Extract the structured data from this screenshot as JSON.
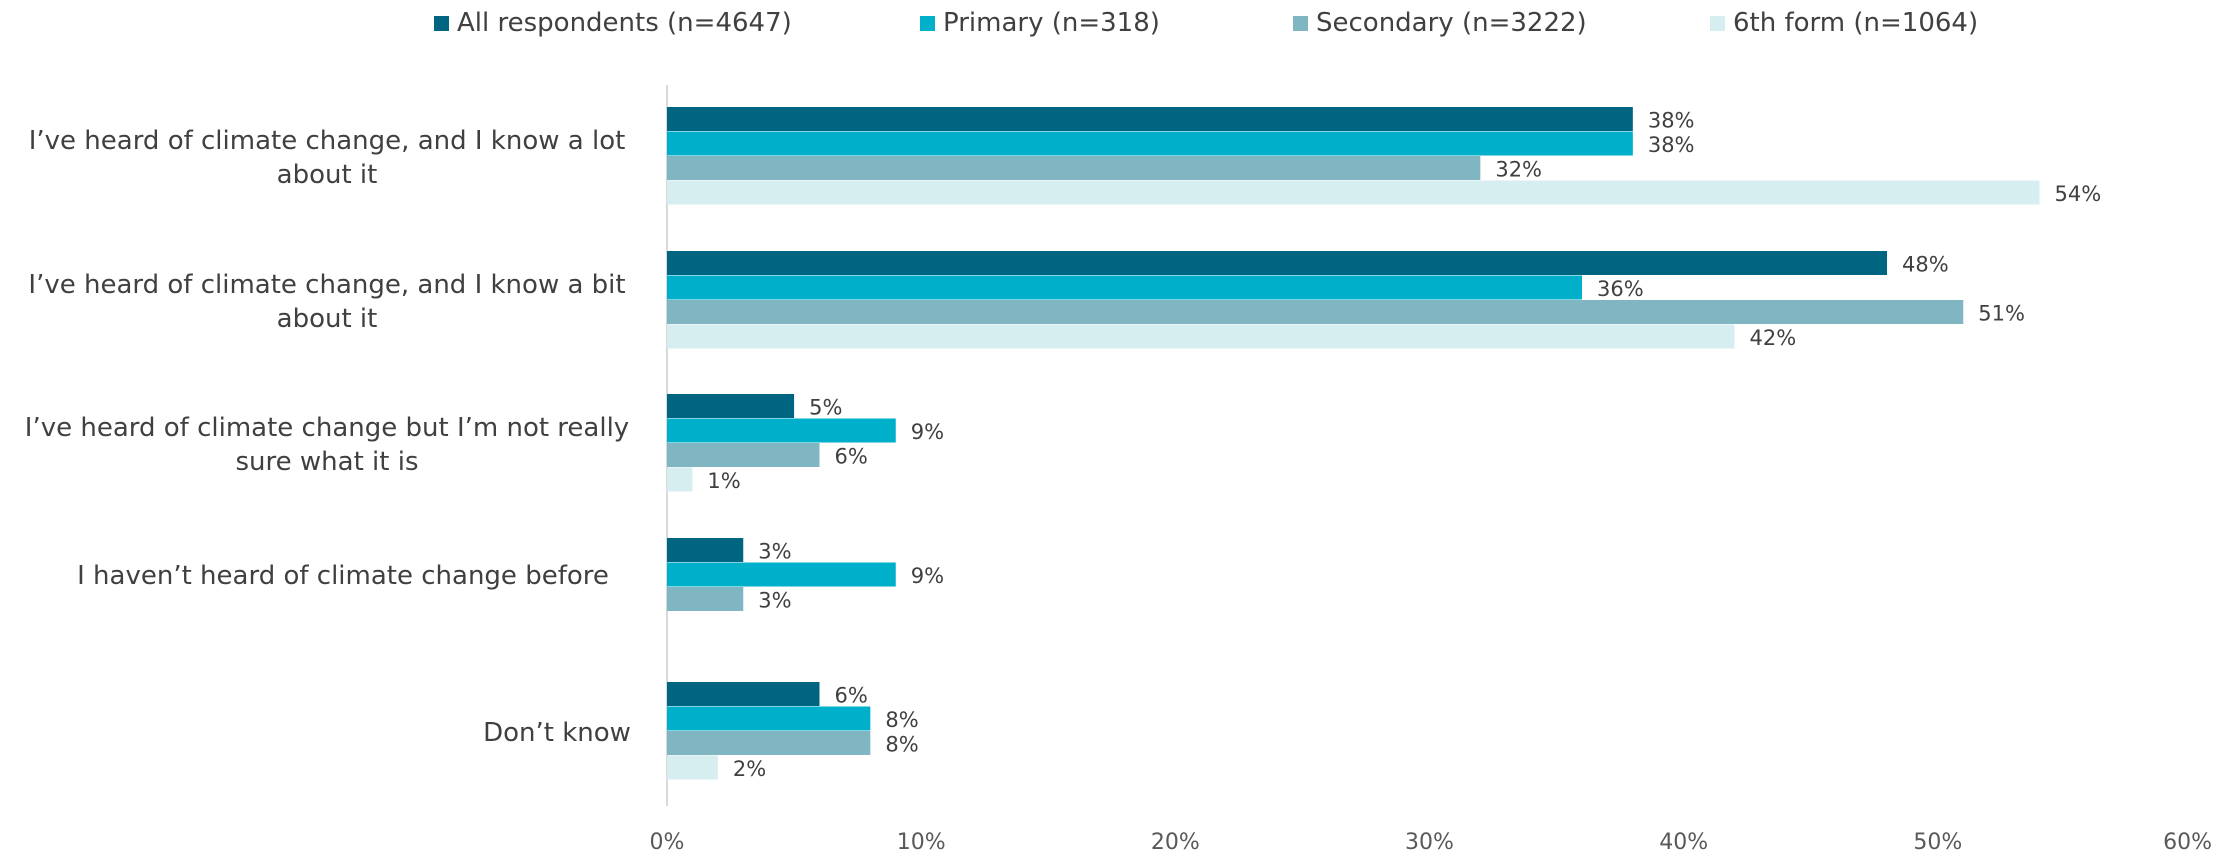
{
  "chart_data": {
    "type": "bar",
    "orientation": "horizontal",
    "categories": [
      "I’ve heard of climate change, and I know a lot about it",
      "I’ve heard of climate change, and I know a bit about it",
      "I’ve heard of climate change but I’m not really sure what it is",
      "I haven’t heard of climate change before",
      "Don’t know"
    ],
    "series": [
      {
        "name": "All respondents (n=4647)",
        "color": "#006580",
        "values": [
          38,
          48,
          5,
          3,
          6
        ]
      },
      {
        "name": "Primary (n=318)",
        "color": "#00AFCA",
        "values": [
          38,
          36,
          9,
          9,
          8
        ]
      },
      {
        "name": "Secondary (n=3222)",
        "color": "#80B5C2",
        "values": [
          32,
          51,
          6,
          3,
          8
        ]
      },
      {
        "name": "6th form (n=1064)",
        "color": "#D6EEF0",
        "values": [
          54,
          42,
          1,
          null,
          2
        ]
      }
    ],
    "data_labels": [
      [
        "38%",
        "48%",
        "5%",
        "3%",
        "6%"
      ],
      [
        "38%",
        "36%",
        "9%",
        "9%",
        "8%"
      ],
      [
        "32%",
        "51%",
        "6%",
        "3%",
        "8%"
      ],
      [
        "54%",
        "42%",
        "1%",
        null,
        "2%"
      ]
    ],
    "xlim": [
      0,
      60
    ],
    "xticks": [
      0,
      10,
      20,
      30,
      40,
      50,
      60
    ],
    "xtick_labels": [
      "0%",
      "10%",
      "20%",
      "30%",
      "40%",
      "50%",
      "60%"
    ],
    "legend_position": "top",
    "grid": false
  }
}
